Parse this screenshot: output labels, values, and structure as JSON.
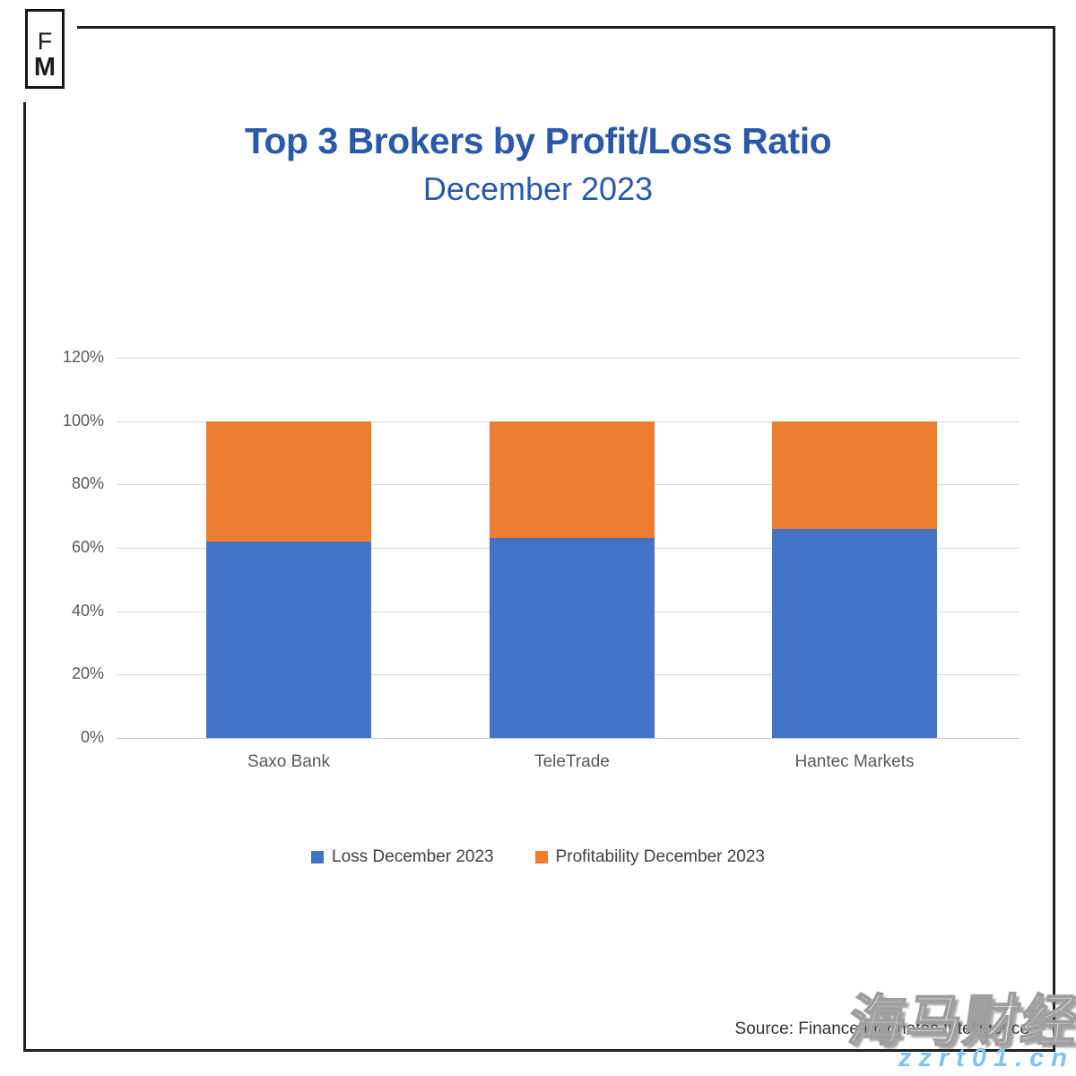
{
  "logo": {
    "letter_top": "F",
    "letter_bottom": "M"
  },
  "header": {
    "title": "Top 3 Brokers by Profit/Loss Ratio",
    "subtitle": "December 2023"
  },
  "chart_data": {
    "type": "bar",
    "stacked": true,
    "title": "Top 3 Brokers by Profit/Loss Ratio",
    "subtitle": "December 2023",
    "categories": [
      "Saxo Bank",
      "TeleTrade",
      "Hantec Markets"
    ],
    "series": [
      {
        "name": "Loss December 2023",
        "color": "#4472C4",
        "values": [
          62,
          63,
          66
        ]
      },
      {
        "name": "Profitability December 2023",
        "color": "#ED7D31",
        "values": [
          38,
          37,
          34
        ]
      }
    ],
    "xlabel": "",
    "ylabel": "",
    "ylim": [
      0,
      120
    ],
    "ytick_step": 20,
    "ytick_suffix": "%",
    "grid": true,
    "legend_position": "bottom"
  },
  "footer": {
    "source": "Source: Finance Magnates Intelligence"
  },
  "watermark": {
    "cn": "海马财经",
    "url": "zzrt01.cn"
  },
  "colors": {
    "title_blue": "#2B59A8",
    "bar_blue": "#4472C4",
    "bar_orange": "#ED7D31",
    "axis_text": "#595959",
    "gridline": "#D9D9D9",
    "frame": "#1f1f1f",
    "source_text": "#333333",
    "watermark_blue": "#7FC3F0"
  }
}
